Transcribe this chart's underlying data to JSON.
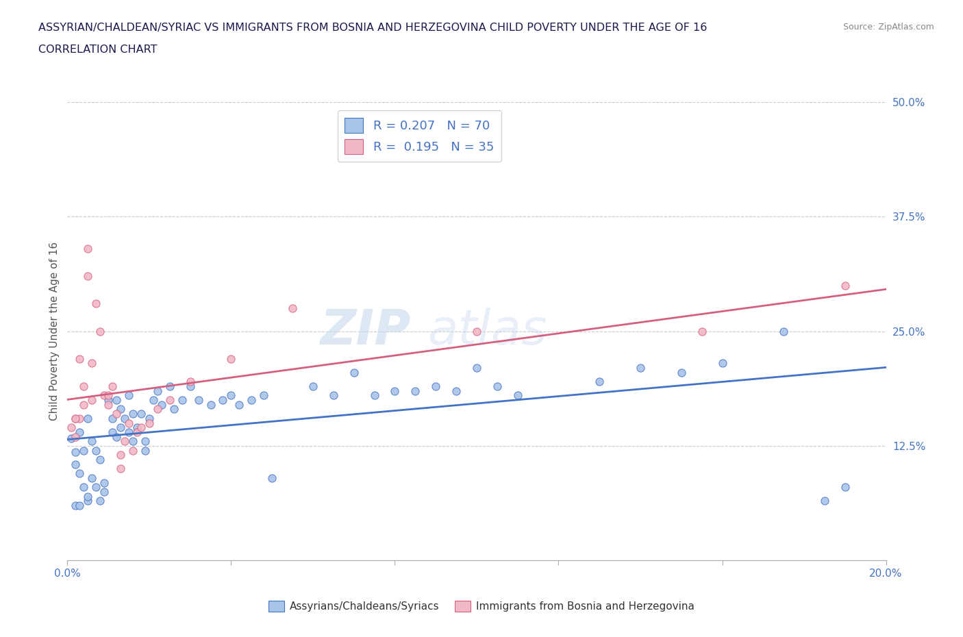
{
  "title_line1": "ASSYRIAN/CHALDEAN/SYRIAC VS IMMIGRANTS FROM BOSNIA AND HERZEGOVINA CHILD POVERTY UNDER THE AGE OF 16",
  "title_line2": "CORRELATION CHART",
  "source_text": "Source: ZipAtlas.com",
  "ylabel": "Child Poverty Under the Age of 16",
  "xmin": 0.0,
  "xmax": 0.2,
  "ymin": 0.0,
  "ymax": 0.5,
  "yticks": [
    0.0,
    0.125,
    0.25,
    0.375,
    0.5
  ],
  "ytick_labels": [
    "",
    "12.5%",
    "25.0%",
    "37.5%",
    "50.0%"
  ],
  "xticks": [
    0.0,
    0.04,
    0.08,
    0.12,
    0.16,
    0.2
  ],
  "xtick_labels_left": "0.0%",
  "xtick_labels_right": "20.0%",
  "blue_color": "#a8c4e8",
  "pink_color": "#f2b8c6",
  "blue_line_color": "#4472c4",
  "pink_line_color": "#d46080",
  "R_blue": 0.207,
  "N_blue": 70,
  "R_pink": 0.195,
  "N_pink": 35,
  "legend_label_blue": "Assyrians/Chaldeans/Syriacs",
  "legend_label_pink": "Immigrants from Bosnia and Herzegovina",
  "watermark_zip": "ZIP",
  "watermark_atlas": "atlas",
  "background_color": "#ffffff",
  "title_color": "#1a1a4e",
  "tick_label_color": "#4472c4",
  "ylabel_color": "#555555",
  "source_color": "#888888",
  "grid_color": "#cccccc",
  "blue_scatter": [
    [
      0.001,
      0.133
    ],
    [
      0.002,
      0.118
    ],
    [
      0.002,
      0.105
    ],
    [
      0.003,
      0.14
    ],
    [
      0.003,
      0.095
    ],
    [
      0.004,
      0.12
    ],
    [
      0.004,
      0.08
    ],
    [
      0.005,
      0.065
    ],
    [
      0.005,
      0.07
    ],
    [
      0.005,
      0.155
    ],
    [
      0.006,
      0.09
    ],
    [
      0.006,
      0.13
    ],
    [
      0.007,
      0.08
    ],
    [
      0.007,
      0.12
    ],
    [
      0.008,
      0.11
    ],
    [
      0.008,
      0.065
    ],
    [
      0.009,
      0.075
    ],
    [
      0.009,
      0.085
    ],
    [
      0.01,
      0.175
    ],
    [
      0.011,
      0.14
    ],
    [
      0.011,
      0.155
    ],
    [
      0.012,
      0.135
    ],
    [
      0.012,
      0.175
    ],
    [
      0.013,
      0.165
    ],
    [
      0.013,
      0.145
    ],
    [
      0.014,
      0.155
    ],
    [
      0.015,
      0.18
    ],
    [
      0.015,
      0.14
    ],
    [
      0.016,
      0.16
    ],
    [
      0.016,
      0.13
    ],
    [
      0.017,
      0.145
    ],
    [
      0.018,
      0.16
    ],
    [
      0.019,
      0.13
    ],
    [
      0.019,
      0.12
    ],
    [
      0.02,
      0.155
    ],
    [
      0.021,
      0.175
    ],
    [
      0.022,
      0.185
    ],
    [
      0.023,
      0.17
    ],
    [
      0.025,
      0.19
    ],
    [
      0.026,
      0.165
    ],
    [
      0.028,
      0.175
    ],
    [
      0.03,
      0.19
    ],
    [
      0.032,
      0.175
    ],
    [
      0.035,
      0.17
    ],
    [
      0.038,
      0.175
    ],
    [
      0.04,
      0.18
    ],
    [
      0.042,
      0.17
    ],
    [
      0.045,
      0.175
    ],
    [
      0.048,
      0.18
    ],
    [
      0.05,
      0.09
    ],
    [
      0.06,
      0.19
    ],
    [
      0.065,
      0.18
    ],
    [
      0.07,
      0.205
    ],
    [
      0.075,
      0.18
    ],
    [
      0.08,
      0.185
    ],
    [
      0.085,
      0.185
    ],
    [
      0.09,
      0.19
    ],
    [
      0.095,
      0.185
    ],
    [
      0.1,
      0.21
    ],
    [
      0.105,
      0.19
    ],
    [
      0.11,
      0.18
    ],
    [
      0.13,
      0.195
    ],
    [
      0.14,
      0.21
    ],
    [
      0.15,
      0.205
    ],
    [
      0.16,
      0.215
    ],
    [
      0.175,
      0.25
    ],
    [
      0.185,
      0.065
    ],
    [
      0.19,
      0.08
    ],
    [
      0.002,
      0.06
    ],
    [
      0.003,
      0.06
    ]
  ],
  "pink_scatter": [
    [
      0.001,
      0.145
    ],
    [
      0.002,
      0.155
    ],
    [
      0.002,
      0.135
    ],
    [
      0.003,
      0.155
    ],
    [
      0.003,
      0.22
    ],
    [
      0.004,
      0.19
    ],
    [
      0.004,
      0.17
    ],
    [
      0.005,
      0.34
    ],
    [
      0.005,
      0.31
    ],
    [
      0.006,
      0.175
    ],
    [
      0.006,
      0.215
    ],
    [
      0.007,
      0.28
    ],
    [
      0.008,
      0.25
    ],
    [
      0.009,
      0.18
    ],
    [
      0.01,
      0.17
    ],
    [
      0.01,
      0.18
    ],
    [
      0.011,
      0.19
    ],
    [
      0.012,
      0.16
    ],
    [
      0.013,
      0.1
    ],
    [
      0.013,
      0.115
    ],
    [
      0.014,
      0.13
    ],
    [
      0.015,
      0.15
    ],
    [
      0.016,
      0.12
    ],
    [
      0.017,
      0.14
    ],
    [
      0.018,
      0.145
    ],
    [
      0.02,
      0.15
    ],
    [
      0.022,
      0.165
    ],
    [
      0.025,
      0.175
    ],
    [
      0.03,
      0.195
    ],
    [
      0.04,
      0.22
    ],
    [
      0.055,
      0.275
    ],
    [
      0.1,
      0.25
    ],
    [
      0.155,
      0.25
    ],
    [
      0.19,
      0.3
    ],
    [
      0.002,
      0.155
    ]
  ]
}
